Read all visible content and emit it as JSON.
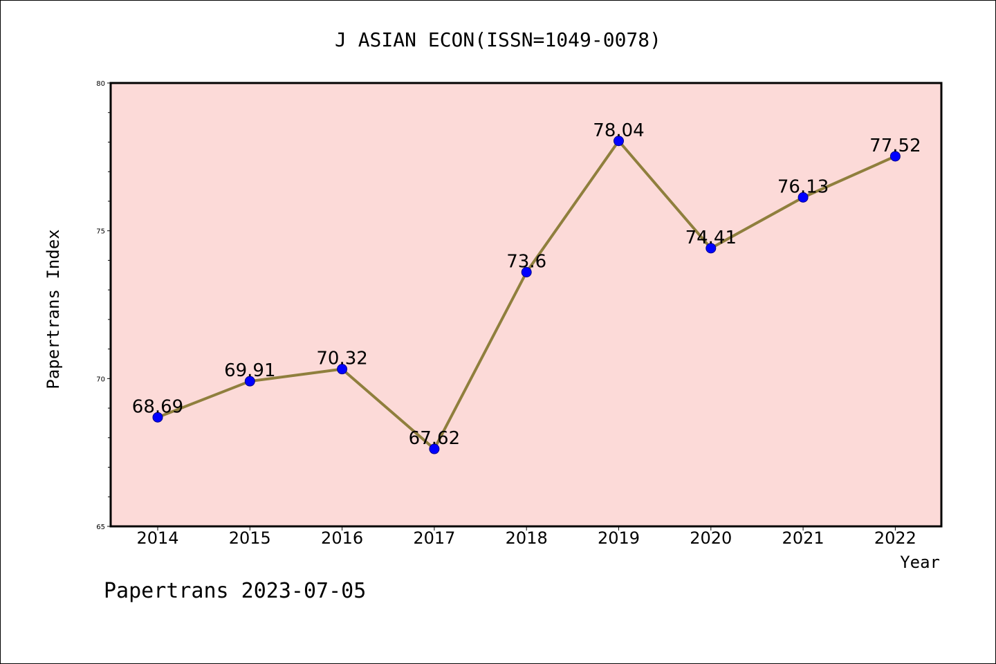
{
  "chart_data": {
    "type": "line",
    "title": "J ASIAN ECON(ISSN=1049-0078)",
    "xlabel": "Year",
    "ylabel": "Papertrans Index",
    "categories": [
      "2014",
      "2015",
      "2016",
      "2017",
      "2018",
      "2019",
      "2020",
      "2021",
      "2022"
    ],
    "series": [
      {
        "values": [
          68.69,
          69.91,
          70.32,
          67.62,
          73.6,
          78.04,
          74.41,
          76.13,
          77.52
        ],
        "data_labels": [
          "68.69",
          "69.91",
          "70.32",
          "67.62",
          "73.6",
          "78.04",
          "74.41",
          "76.13",
          "77.52"
        ]
      }
    ],
    "ylim": [
      65,
      80
    ],
    "yticks": [
      "65",
      "70",
      "75",
      "80"
    ],
    "grid": false,
    "colors": {
      "plot_background": "#fcdad8",
      "line": "#8f7f3d",
      "marker": "#0000ff",
      "marker_edge": "#00008b"
    }
  },
  "footer": {
    "text": "Papertrans 2023-07-05"
  }
}
